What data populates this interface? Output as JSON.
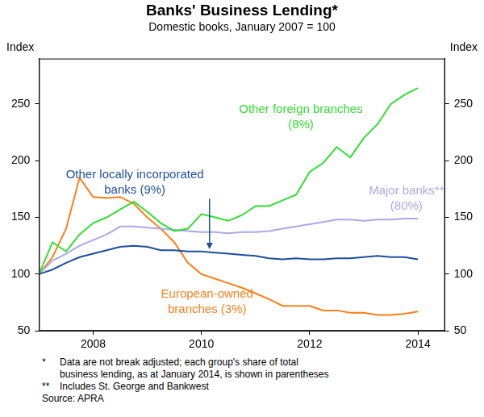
{
  "chart_data": {
    "type": "line",
    "title": "Banks' Business Lending*",
    "subtitle": "Domestic books, January 2007 = 100",
    "y_label": "Index",
    "x": [
      2007,
      2007.25,
      2007.5,
      2007.75,
      2008,
      2008.25,
      2008.5,
      2008.75,
      2009,
      2009.25,
      2009.5,
      2009.75,
      2010,
      2010.25,
      2010.5,
      2010.75,
      2011,
      2011.25,
      2011.5,
      2011.75,
      2012,
      2012.25,
      2012.5,
      2012.75,
      2013,
      2013.25,
      2013.5,
      2013.75,
      2014
    ],
    "series": [
      {
        "name": "Other foreign branches\n(8%)",
        "color": "#33dd33",
        "values": [
          100,
          128,
          120,
          135,
          145,
          150,
          157,
          164,
          155,
          145,
          138,
          140,
          153,
          150,
          147,
          152,
          160,
          160,
          165,
          170,
          190,
          198,
          212,
          203,
          220,
          232,
          250,
          258,
          264
        ]
      },
      {
        "name": "Other locally incorporated\nbanks (9%)",
        "color": "#1f4e9c",
        "values": [
          100,
          104,
          110,
          115,
          118,
          121,
          124,
          125,
          124,
          121,
          121,
          120,
          120,
          119,
          118,
          117,
          116,
          114,
          113,
          114,
          113,
          113,
          114,
          114,
          115,
          116,
          115,
          115,
          113
        ]
      },
      {
        "name": "Major banks**\n(80%)",
        "color": "#a9a9e8",
        "values": [
          100,
          112,
          118,
          125,
          130,
          135,
          142,
          142,
          141,
          140,
          139,
          138,
          137,
          137,
          136,
          137,
          137,
          138,
          140,
          142,
          144,
          146,
          148,
          148,
          147,
          148,
          148,
          149,
          149
        ]
      },
      {
        "name": "European-owned\nbranches (3%)",
        "color": "#ff7f1a",
        "values": [
          100,
          115,
          140,
          185,
          168,
          167,
          168,
          162,
          150,
          140,
          128,
          110,
          100,
          96,
          92,
          88,
          83,
          78,
          72,
          72,
          72,
          68,
          68,
          66,
          66,
          64,
          64,
          65,
          67
        ]
      }
    ],
    "xlim": [
      2007,
      2014.5
    ],
    "xticks": [
      2008,
      2010,
      2012,
      2014
    ],
    "ylim": [
      50,
      290
    ],
    "yticks": [
      50,
      100,
      150,
      200,
      250
    ],
    "grid": false,
    "notes": [
      {
        "mark": "*",
        "text": "Data are not break adjusted; each group's share of total business lending, as at January 2014, is shown in parentheses"
      },
      {
        "mark": "**",
        "text": "Includes St. George and Bankwest"
      }
    ],
    "source": "Source: APRA"
  }
}
